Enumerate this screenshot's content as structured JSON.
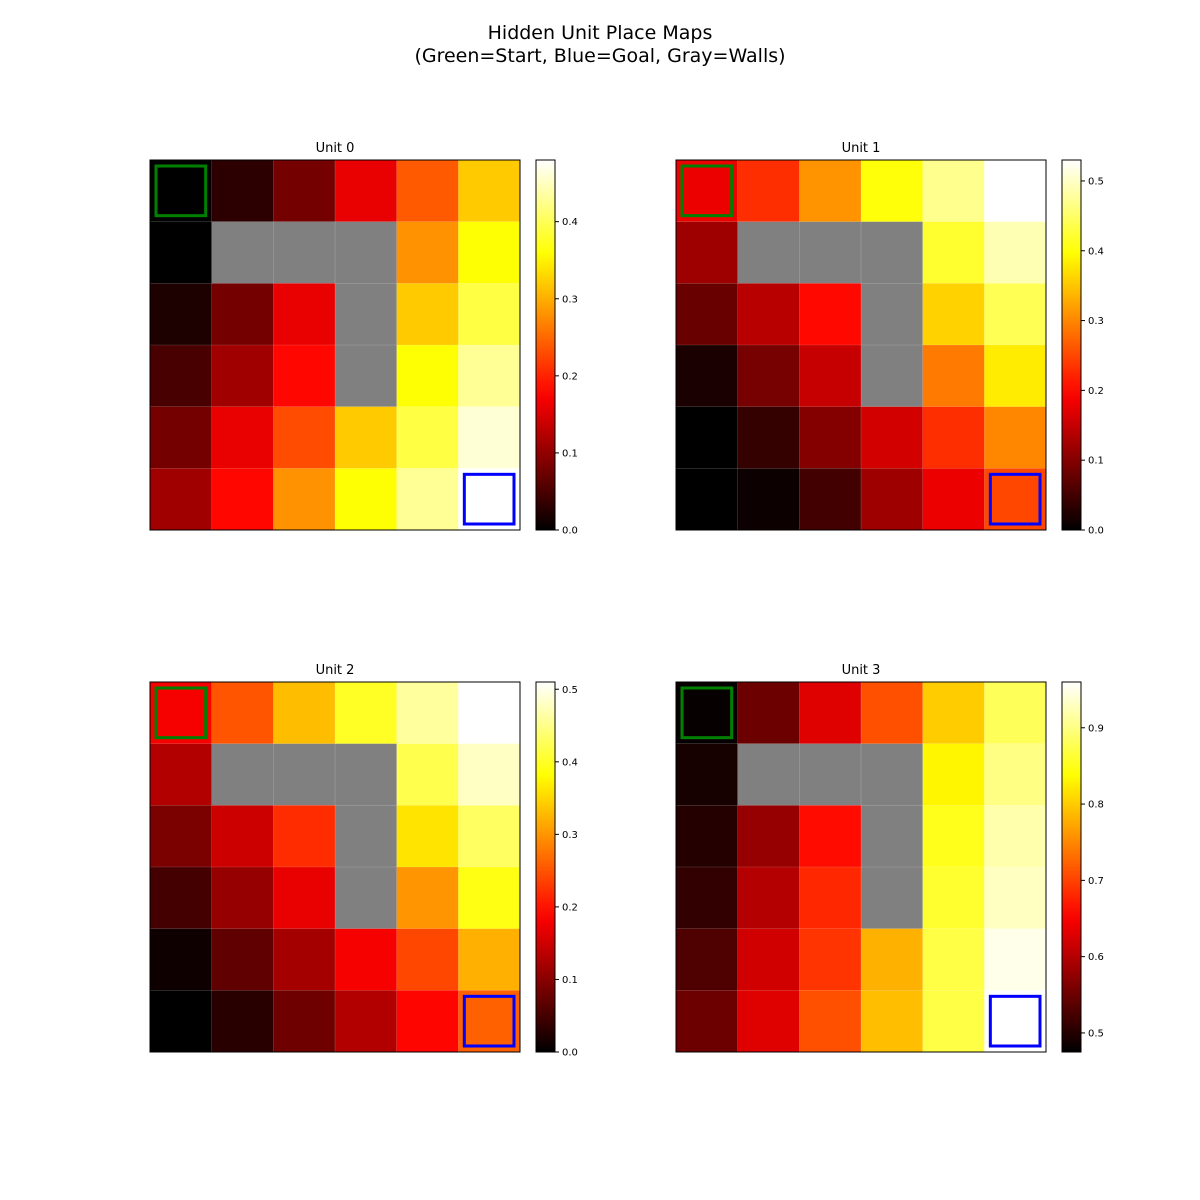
{
  "title_line1": "Hidden Unit Place Maps",
  "title_line2": "(Green=Start, Blue=Goal, Gray=Walls)",
  "colors": {
    "wall": "#808080",
    "start_marker": "#008000",
    "goal_marker": "#0000ff",
    "colormap": "hot"
  },
  "chart_data": [
    {
      "type": "heatmap",
      "title": "Unit 0",
      "grid_size": 6,
      "start": [
        0,
        0
      ],
      "goal": [
        5,
        5
      ],
      "walls": [
        [
          1,
          1
        ],
        [
          1,
          2
        ],
        [
          1,
          3
        ],
        [
          2,
          3
        ],
        [
          3,
          3
        ]
      ],
      "clim": [
        0,
        0.48
      ],
      "colorbar_ticks": [
        0.0,
        0.1,
        0.2,
        0.3,
        0.4
      ],
      "colorbar_tick_labels": [
        "0.0",
        "0.1",
        "0.2",
        "0.3",
        "0.4"
      ],
      "values": [
        [
          0.0,
          0.03,
          0.08,
          0.16,
          0.24,
          0.32
        ],
        [
          0.0,
          null,
          null,
          null,
          0.28,
          0.36
        ],
        [
          0.02,
          0.08,
          0.16,
          null,
          0.32,
          0.39
        ],
        [
          0.05,
          0.11,
          0.18,
          null,
          0.36,
          0.43
        ],
        [
          0.08,
          0.16,
          0.23,
          0.32,
          0.39,
          0.46
        ],
        [
          0.11,
          0.18,
          0.28,
          0.36,
          0.43,
          0.48
        ]
      ]
    },
    {
      "type": "heatmap",
      "title": "Unit 1",
      "grid_size": 6,
      "start": [
        0,
        0
      ],
      "goal": [
        5,
        5
      ],
      "walls": [
        [
          1,
          1
        ],
        [
          1,
          2
        ],
        [
          1,
          3
        ],
        [
          2,
          3
        ],
        [
          3,
          3
        ]
      ],
      "clim": [
        0,
        0.53
      ],
      "colorbar_ticks": [
        0.0,
        0.1,
        0.2,
        0.3,
        0.4,
        0.5
      ],
      "colorbar_tick_labels": [
        "0.0",
        "0.1",
        "0.2",
        "0.3",
        "0.4",
        "0.5"
      ],
      "values": [
        [
          0.18,
          0.23,
          0.31,
          0.4,
          0.47,
          0.53
        ],
        [
          0.12,
          null,
          null,
          null,
          0.42,
          0.49
        ],
        [
          0.08,
          0.14,
          0.2,
          null,
          0.36,
          0.44
        ],
        [
          0.02,
          0.09,
          0.15,
          null,
          0.29,
          0.38
        ],
        [
          0.0,
          0.04,
          0.1,
          0.16,
          0.23,
          0.3
        ],
        [
          0.0,
          0.01,
          0.05,
          0.12,
          0.18,
          0.25
        ]
      ]
    },
    {
      "type": "heatmap",
      "title": "Unit 2",
      "grid_size": 6,
      "start": [
        0,
        0
      ],
      "goal": [
        5,
        5
      ],
      "walls": [
        [
          1,
          1
        ],
        [
          1,
          2
        ],
        [
          1,
          3
        ],
        [
          2,
          3
        ],
        [
          3,
          3
        ]
      ],
      "clim": [
        0,
        0.51
      ],
      "colorbar_ticks": [
        0.0,
        0.1,
        0.2,
        0.3,
        0.4,
        0.5
      ],
      "colorbar_tick_labels": [
        "0.0",
        "0.1",
        "0.2",
        "0.3",
        "0.4",
        "0.5"
      ],
      "values": [
        [
          0.18,
          0.25,
          0.33,
          0.4,
          0.46,
          0.51
        ],
        [
          0.13,
          null,
          null,
          null,
          0.42,
          0.48
        ],
        [
          0.09,
          0.15,
          0.22,
          null,
          0.36,
          0.43
        ],
        [
          0.05,
          0.11,
          0.17,
          null,
          0.3,
          0.39
        ],
        [
          0.01,
          0.07,
          0.12,
          0.18,
          0.24,
          0.32
        ],
        [
          0.0,
          0.03,
          0.08,
          0.13,
          0.19,
          0.26
        ]
      ]
    },
    {
      "type": "heatmap",
      "title": "Unit 3",
      "grid_size": 6,
      "start": [
        0,
        0
      ],
      "goal": [
        5,
        5
      ],
      "walls": [
        [
          1,
          1
        ],
        [
          1,
          2
        ],
        [
          1,
          3
        ],
        [
          2,
          3
        ],
        [
          3,
          3
        ]
      ],
      "clim": [
        0.475,
        0.96
      ],
      "colorbar_ticks": [
        0.5,
        0.6,
        0.7,
        0.8,
        0.9
      ],
      "colorbar_tick_labels": [
        "0.5",
        "0.6",
        "0.7",
        "0.8",
        "0.9"
      ],
      "values": [
        [
          0.48,
          0.55,
          0.63,
          0.71,
          0.8,
          0.88
        ],
        [
          0.49,
          null,
          null,
          null,
          0.83,
          0.9
        ],
        [
          0.5,
          0.58,
          0.66,
          null,
          0.85,
          0.92
        ],
        [
          0.51,
          0.6,
          0.68,
          null,
          0.86,
          0.93
        ],
        [
          0.53,
          0.62,
          0.69,
          0.78,
          0.87,
          0.95
        ],
        [
          0.55,
          0.63,
          0.71,
          0.79,
          0.87,
          0.96
        ]
      ]
    }
  ]
}
